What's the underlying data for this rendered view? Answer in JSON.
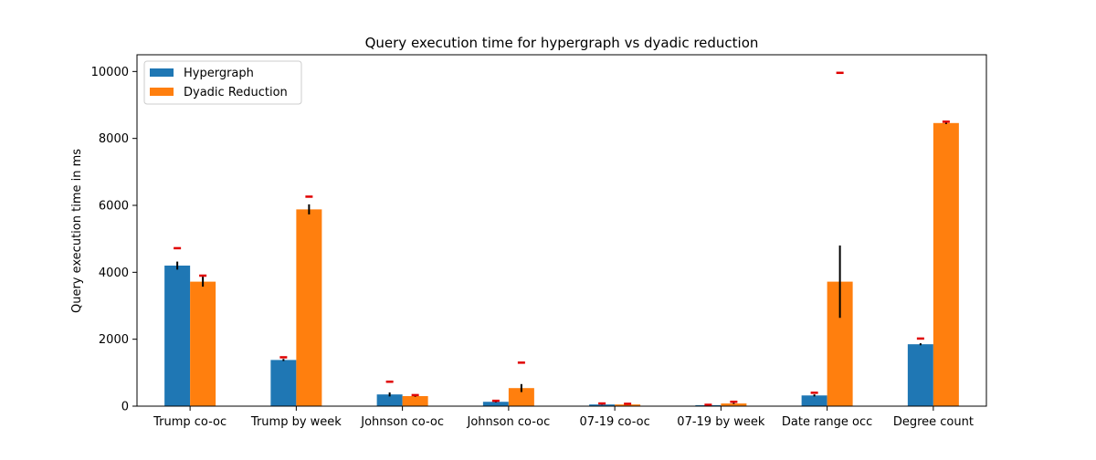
{
  "chart_data": {
    "type": "bar",
    "title": "Query execution time for hypergraph vs dyadic reduction",
    "xlabel": "",
    "ylabel": "Query execution time in ms",
    "ylim": [
      0,
      10500
    ],
    "yticks": [
      0,
      2000,
      4000,
      6000,
      8000,
      10000
    ],
    "grid": false,
    "legend_position": "top-left",
    "categories": [
      "Trump co-oc",
      "Trump by week",
      "Johnson co-oc",
      "Johnson co-oc",
      "07-19 co-oc",
      "07-19 by week",
      "Date range occ",
      "Degree count"
    ],
    "series": [
      {
        "name": "Hypergraph",
        "color": "#1f77b4",
        "values": [
          4200,
          1380,
          350,
          130,
          50,
          30,
          320,
          1850
        ],
        "error": [
          120,
          30,
          60,
          20,
          10,
          5,
          30,
          30
        ],
        "max": [
          4720,
          1460,
          730,
          160,
          80,
          40,
          400,
          2020
        ]
      },
      {
        "name": "Dyadic Reduction",
        "color": "#ff7f0e",
        "values": [
          3720,
          5880,
          300,
          540,
          50,
          80,
          3720,
          8460
        ],
        "error": [
          150,
          150,
          20,
          120,
          10,
          15,
          1080,
          30
        ],
        "max": [
          3900,
          6260,
          330,
          1300,
          70,
          130,
          9960,
          8500
        ]
      }
    ],
    "error_color": "#000000",
    "max_marker_color": "#e00000"
  }
}
